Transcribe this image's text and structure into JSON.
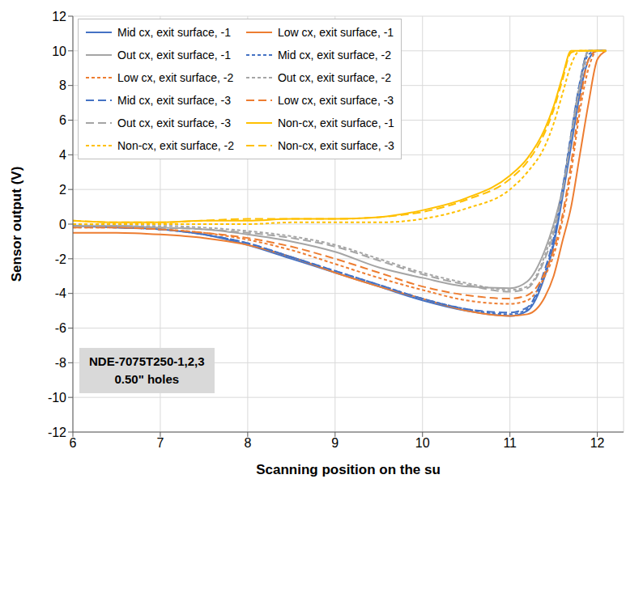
{
  "chart_data": {
    "type": "line",
    "xlabel": "Scanning position on the su",
    "ylabel": "Sensor output (V)",
    "annotation": [
      "NDE-7075T250-1,2,3",
      "0.50\" holes"
    ],
    "x": [
      6,
      6.5,
      7,
      7.5,
      8,
      8.5,
      9,
      9.5,
      10,
      10.5,
      11,
      11.2,
      11.4,
      11.5,
      11.6,
      11.7,
      11.8,
      11.9,
      12,
      12.1
    ],
    "xlim": [
      6,
      12.3
    ],
    "xticks": [
      6,
      7,
      8,
      9,
      10,
      11,
      12
    ],
    "ylim": [
      -12,
      12
    ],
    "yticks": [
      -12,
      -10,
      -8,
      -6,
      -4,
      -2,
      0,
      2,
      4,
      6,
      8,
      10,
      12
    ],
    "grid": true,
    "legend": "upper left",
    "series": [
      {
        "name": "Mid cx, exit surface, -1",
        "color": "#4472c4",
        "line_style": "solid",
        "values": [
          -0.1,
          -0.2,
          -0.3,
          -0.6,
          -1.2,
          -2.0,
          -2.8,
          -3.6,
          -4.4,
          -5.0,
          -5.3,
          -5.0,
          -3.0,
          -1.2,
          1.5,
          4.5,
          7.5,
          9.5,
          10,
          10
        ]
      },
      {
        "name": "Low cx, exit surface, -1",
        "color": "#ed7d31",
        "line_style": "solid",
        "values": [
          -0.5,
          -0.5,
          -0.6,
          -0.8,
          -1.2,
          -1.9,
          -2.8,
          -3.6,
          -4.3,
          -5.0,
          -5.3,
          -5.2,
          -4.2,
          -3.0,
          -1.0,
          1.0,
          4.0,
          7.0,
          9.5,
          10
        ]
      },
      {
        "name": "Out cx, exit surface, -1",
        "color": "#a5a5a5",
        "line_style": "solid",
        "values": [
          -0.1,
          -0.1,
          -0.2,
          -0.3,
          -0.6,
          -1.0,
          -1.6,
          -2.5,
          -3.1,
          -3.6,
          -3.7,
          -3.3,
          -1.5,
          0,
          2.0,
          5.0,
          8.0,
          10,
          10,
          10
        ]
      },
      {
        "name": "Mid cx, exit surface, -2",
        "color": "#4472c4",
        "line_style": "dashed",
        "values": [
          -0.1,
          -0.2,
          -0.3,
          -0.6,
          -1.1,
          -1.9,
          -2.7,
          -3.5,
          -4.3,
          -4.9,
          -5.2,
          -4.9,
          -2.8,
          -1.0,
          1.8,
          5.0,
          8.0,
          9.8,
          10,
          10
        ]
      },
      {
        "name": "Low cx, exit surface, -2",
        "color": "#ed7d31",
        "line_style": "dashed",
        "values": [
          -0.2,
          -0.2,
          -0.3,
          -0.5,
          -0.9,
          -1.5,
          -2.3,
          -3.1,
          -3.8,
          -4.4,
          -4.6,
          -4.4,
          -3.0,
          -1.8,
          0.2,
          3.0,
          6.5,
          9.0,
          10,
          10
        ]
      },
      {
        "name": "Out cx, exit surface, -2",
        "color": "#a5a5a5",
        "line_style": "dashed",
        "values": [
          -0.1,
          -0.1,
          -0.1,
          -0.2,
          -0.4,
          -0.7,
          -1.2,
          -2.0,
          -2.8,
          -3.4,
          -3.8,
          -3.6,
          -1.8,
          -0.2,
          2.0,
          5.2,
          8.2,
          10,
          10,
          10
        ]
      },
      {
        "name": "Mid cx, exit surface, -3",
        "color": "#4472c4",
        "line_style": "longdash",
        "values": [
          -0.1,
          -0.2,
          -0.3,
          -0.6,
          -1.1,
          -1.9,
          -2.7,
          -3.5,
          -4.3,
          -4.9,
          -5.1,
          -4.8,
          -2.6,
          -0.8,
          2.0,
          5.2,
          8.2,
          10,
          10,
          10
        ]
      },
      {
        "name": "Low cx, exit surface, -3",
        "color": "#ed7d31",
        "line_style": "longdash",
        "values": [
          -0.2,
          -0.2,
          -0.3,
          -0.5,
          -0.8,
          -1.3,
          -2.0,
          -2.8,
          -3.6,
          -4.1,
          -4.3,
          -4.1,
          -2.8,
          -1.5,
          0.5,
          3.5,
          7.0,
          9.5,
          10,
          10
        ]
      },
      {
        "name": "Out cx, exit surface, -3",
        "color": "#a5a5a5",
        "line_style": "longdash",
        "values": [
          -0.1,
          -0.1,
          -0.2,
          -0.3,
          -0.5,
          -0.8,
          -1.3,
          -2.1,
          -2.9,
          -3.5,
          -3.9,
          -3.7,
          -2.0,
          -0.5,
          1.8,
          5.0,
          8.0,
          10,
          10,
          10
        ]
      },
      {
        "name": "Non-cx, exit surface, -1",
        "color": "#ffc000",
        "line_style": "solid",
        "values": [
          0.2,
          0.1,
          0.1,
          0.2,
          0.2,
          0.3,
          0.3,
          0.4,
          0.8,
          1.5,
          2.8,
          3.8,
          5.5,
          6.8,
          8.5,
          10,
          10,
          10,
          10,
          10
        ]
      },
      {
        "name": "Non-cx, exit surface, -2",
        "color": "#ffc000",
        "line_style": "dashed",
        "values": [
          0,
          0,
          0,
          0,
          0,
          0.1,
          0.1,
          0.1,
          0.3,
          0.9,
          2.0,
          3.0,
          4.5,
          5.8,
          7.5,
          9.2,
          10,
          10,
          10,
          10
        ]
      },
      {
        "name": "Non-cx, exit surface, -3",
        "color": "#ffc000",
        "line_style": "longdash",
        "values": [
          0.2,
          0.1,
          0.1,
          0.2,
          0.3,
          0.3,
          0.3,
          0.4,
          0.7,
          1.4,
          2.6,
          3.6,
          5.3,
          6.6,
          8.3,
          9.9,
          10,
          10,
          10,
          10
        ]
      }
    ]
  }
}
